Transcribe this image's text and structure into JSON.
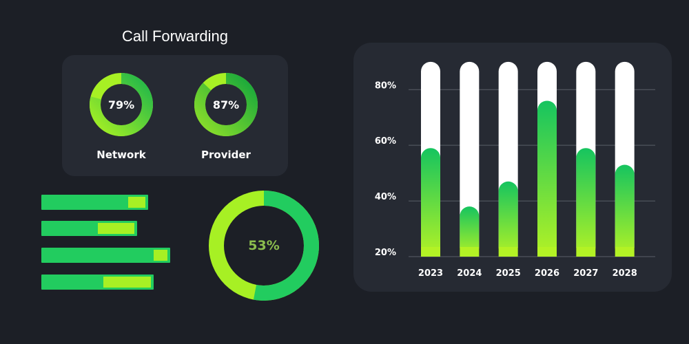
{
  "title": "Call Forwarding",
  "gauges": [
    {
      "label": "Network",
      "percent_text": "79%",
      "value": 79
    },
    {
      "label": "Provider",
      "percent_text": "87%",
      "value": 87
    }
  ],
  "progress_bars": [
    {
      "value": 0.81
    },
    {
      "value": 0.59
    },
    {
      "value": 0.87
    },
    {
      "value": 0.55
    }
  ],
  "donut": {
    "percent_text": "53%",
    "value": 53
  },
  "colors": {
    "background": "#1c1f26",
    "card": "#262a33",
    "green": "#22cc5f",
    "lime": "#a7f024",
    "track": "#ffffff"
  },
  "chart_data": {
    "type": "bar",
    "categories": [
      "2023",
      "2024",
      "2025",
      "2026",
      "2027",
      "2028"
    ],
    "values": [
      59,
      38,
      47,
      76,
      59,
      53
    ],
    "yticks": [
      20,
      40,
      60,
      80
    ],
    "ytick_labels": [
      "20%",
      "40%",
      "60%",
      "80%"
    ],
    "ylim": [
      20,
      86
    ],
    "track_max": 90,
    "title": "",
    "xlabel": "",
    "ylabel": ""
  }
}
